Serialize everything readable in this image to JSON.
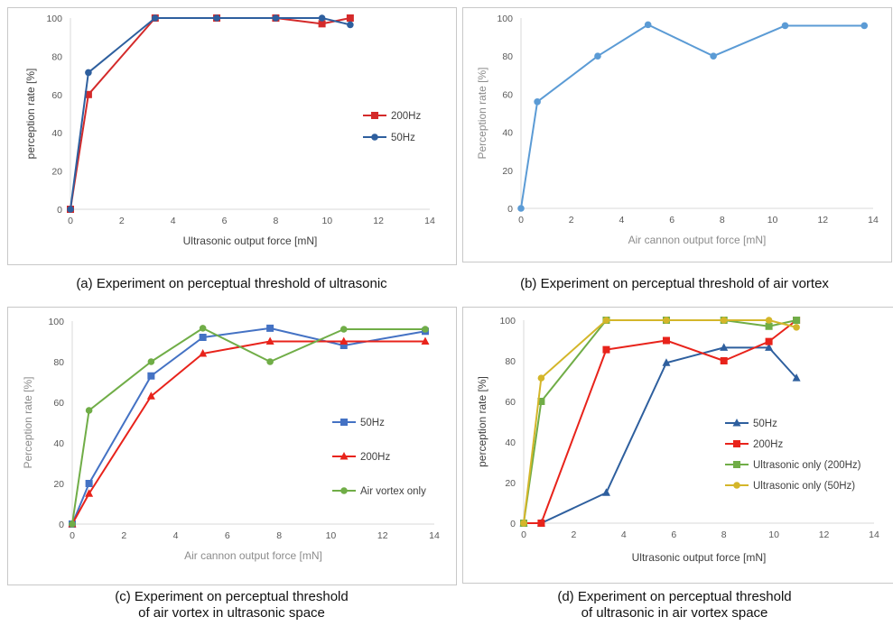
{
  "chart_data": [
    {
      "type": "line",
      "panel": "a",
      "caption": "(a) Experiment on perceptual threshold of ultrasonic",
      "xlabel": "Ultrasonic output  force [mN]",
      "ylabel": "perception rate [%]",
      "xlim": [
        0,
        14
      ],
      "ylim": [
        0,
        100
      ],
      "xticks": [
        0,
        2,
        4,
        6,
        8,
        10,
        12,
        14
      ],
      "yticks": [
        0,
        20,
        40,
        60,
        80,
        100
      ],
      "grid": false,
      "legend_position": "right",
      "series": [
        {
          "name": "200Hz",
          "color": "#d42a2a",
          "marker": "square",
          "x": [
            0,
            0.7,
            3.3,
            5.7,
            8.0,
            9.8,
            10.9
          ],
          "y": [
            0,
            60,
            100,
            100,
            100,
            97,
            100
          ]
        },
        {
          "name": "50Hz",
          "color": "#2e5f9e",
          "marker": "circle",
          "x": [
            0,
            0.7,
            3.3,
            5.7,
            8.0,
            9.8,
            10.9
          ],
          "y": [
            0,
            71.5,
            100,
            100,
            100,
            100,
            96.5
          ]
        }
      ]
    },
    {
      "type": "line",
      "panel": "b",
      "caption": "(b) Experiment on perceptual threshold of air vortex",
      "xlabel": "Air cannon output force [mN]",
      "ylabel": "Perception  rate [%]",
      "xlim": [
        0,
        14
      ],
      "ylim": [
        0,
        100
      ],
      "xticks": [
        0,
        2,
        4,
        6,
        8,
        10,
        12,
        14
      ],
      "yticks": [
        0,
        20,
        40,
        60,
        80,
        100
      ],
      "grid": false,
      "series": [
        {
          "name": "",
          "color": "#5b9bd5",
          "marker": "circle",
          "x": [
            0,
            0.65,
            3.05,
            5.05,
            7.65,
            10.5,
            13.65
          ],
          "y": [
            0,
            56,
            80,
            96.5,
            80,
            96,
            96
          ]
        }
      ]
    },
    {
      "type": "line",
      "panel": "c",
      "caption": "(c) Experiment on perceptual threshold\nof air vortex in ultrasonic space",
      "xlabel": "Air cannon output force [mN]",
      "ylabel": "Perception rate [%]",
      "xlim": [
        0,
        14
      ],
      "ylim": [
        0,
        100
      ],
      "xticks": [
        0,
        2,
        4,
        6,
        8,
        10,
        12,
        14
      ],
      "yticks": [
        0,
        20,
        40,
        60,
        80,
        100
      ],
      "grid": false,
      "legend_position": "right",
      "series": [
        {
          "name": "50Hz",
          "color": "#4472c4",
          "marker": "square",
          "x": [
            0,
            0.65,
            3.05,
            5.05,
            7.65,
            10.5,
            13.65
          ],
          "y": [
            0,
            20,
            73,
            92,
            96.5,
            88,
            95
          ]
        },
        {
          "name": "200Hz",
          "color": "#e8231b",
          "marker": "triangle",
          "x": [
            0,
            0.65,
            3.05,
            5.05,
            7.65,
            10.5,
            13.65
          ],
          "y": [
            0,
            15,
            63,
            84,
            90,
            90,
            90
          ]
        },
        {
          "name": "Air vortex only",
          "color": "#70ad47",
          "marker": "circle",
          "x": [
            0,
            0.65,
            3.05,
            5.05,
            7.65,
            10.5,
            13.65
          ],
          "y": [
            0,
            56,
            80,
            96.5,
            80,
            96,
            96
          ]
        }
      ]
    },
    {
      "type": "line",
      "panel": "d",
      "caption": "(d) Experiment on perceptual threshold\nof ultrasonic in air vortex space",
      "xlabel": "Ultrasonic output force [mN]",
      "ylabel": "perception rate [%]",
      "xlim": [
        0,
        14
      ],
      "ylim": [
        0,
        100
      ],
      "xticks": [
        0,
        2,
        4,
        6,
        8,
        10,
        12,
        14
      ],
      "yticks": [
        0,
        20,
        40,
        60,
        80,
        100
      ],
      "grid": false,
      "legend_position": "right",
      "series": [
        {
          "name": "50Hz",
          "color": "#2e5f9e",
          "marker": "triangle",
          "x": [
            0,
            0.7,
            3.3,
            5.7,
            8.0,
            9.8,
            10.9
          ],
          "y": [
            0,
            0,
            15,
            79,
            86.5,
            86.5,
            71.5
          ]
        },
        {
          "name": "200Hz",
          "color": "#e8231b",
          "marker": "square",
          "x": [
            0,
            0.7,
            3.3,
            5.7,
            8.0,
            9.8,
            10.9
          ],
          "y": [
            0,
            0,
            85.5,
            90,
            80,
            89.5,
            100
          ]
        },
        {
          "name": "Ultrasonic only (200Hz)",
          "color": "#70ad47",
          "marker": "square",
          "x": [
            0,
            0.7,
            3.3,
            5.7,
            8.0,
            9.8,
            10.9
          ],
          "y": [
            0,
            60,
            100,
            100,
            100,
            97,
            100
          ]
        },
        {
          "name": "Ultrasonic only (50Hz)",
          "color": "#d4b62a",
          "marker": "circle",
          "x": [
            0,
            0.7,
            3.3,
            5.7,
            8.0,
            9.8,
            10.9
          ],
          "y": [
            0,
            71.5,
            100,
            100,
            100,
            100,
            96.5
          ]
        }
      ]
    }
  ]
}
